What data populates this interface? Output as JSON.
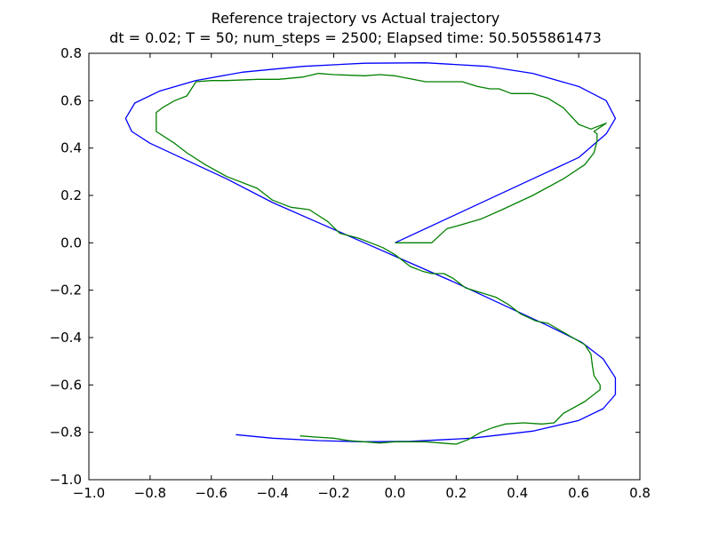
{
  "chart_data": {
    "type": "line",
    "title": "Reference trajectory vs Actual trajectory",
    "subtitle": "dt = 0.02; T = 50; num_steps = 2500; Elapsed time: 50.5055861473",
    "xlabel": "",
    "ylabel": "",
    "xlim": [
      -1.0,
      0.8
    ],
    "ylim": [
      -1.0,
      0.8
    ],
    "x_ticks": [
      -1.0,
      -0.8,
      -0.6,
      -0.4,
      -0.2,
      0.0,
      0.2,
      0.4,
      0.6,
      0.8
    ],
    "x_tick_labels": [
      "−1.0",
      "−0.8",
      "−0.6",
      "−0.4",
      "−0.2",
      "0.0",
      "0.2",
      "0.4",
      "0.6",
      "0.8"
    ],
    "y_ticks": [
      -1.0,
      -0.8,
      -0.6,
      -0.4,
      -0.2,
      0.0,
      0.2,
      0.4,
      0.6,
      0.8
    ],
    "y_tick_labels": [
      "−1.0",
      "−0.8",
      "−0.6",
      "−0.4",
      "−0.2",
      "0.0",
      "0.2",
      "0.4",
      "0.6",
      "0.8"
    ],
    "grid": false,
    "legend": "none",
    "series": [
      {
        "color": "#0000ff",
        "points": [
          [
            0.0,
            0.0
          ],
          [
            0.15,
            0.09
          ],
          [
            0.3,
            0.18
          ],
          [
            0.45,
            0.27
          ],
          [
            0.6,
            0.36
          ],
          [
            0.69,
            0.46
          ],
          [
            0.72,
            0.525
          ],
          [
            0.69,
            0.6
          ],
          [
            0.6,
            0.66
          ],
          [
            0.45,
            0.715
          ],
          [
            0.3,
            0.745
          ],
          [
            0.1,
            0.76
          ],
          [
            -0.1,
            0.758
          ],
          [
            -0.3,
            0.745
          ],
          [
            -0.5,
            0.72
          ],
          [
            -0.65,
            0.685
          ],
          [
            -0.77,
            0.64
          ],
          [
            -0.85,
            0.59
          ],
          [
            -0.88,
            0.525
          ],
          [
            -0.86,
            0.47
          ],
          [
            -0.8,
            0.42
          ],
          [
            -0.7,
            0.36
          ],
          [
            -0.55,
            0.27
          ],
          [
            -0.4,
            0.17
          ],
          [
            -0.25,
            0.085
          ],
          [
            -0.1,
            0.0
          ],
          [
            0.05,
            -0.085
          ],
          [
            0.2,
            -0.17
          ],
          [
            0.35,
            -0.26
          ],
          [
            0.5,
            -0.35
          ],
          [
            0.61,
            -0.42
          ],
          [
            0.68,
            -0.49
          ],
          [
            0.72,
            -0.57
          ],
          [
            0.72,
            -0.64
          ],
          [
            0.68,
            -0.7
          ],
          [
            0.6,
            -0.75
          ],
          [
            0.45,
            -0.795
          ],
          [
            0.25,
            -0.825
          ],
          [
            0.05,
            -0.838
          ],
          [
            -0.1,
            -0.84
          ],
          [
            -0.25,
            -0.835
          ],
          [
            -0.4,
            -0.825
          ],
          [
            -0.52,
            -0.81
          ]
        ]
      },
      {
        "color": "#008000",
        "points": [
          [
            0.0,
            0.0
          ],
          [
            0.06,
            0.0
          ],
          [
            0.12,
            0.0
          ],
          [
            0.17,
            0.06
          ],
          [
            0.2,
            0.07
          ],
          [
            0.28,
            0.1
          ],
          [
            0.35,
            0.14
          ],
          [
            0.45,
            0.2
          ],
          [
            0.55,
            0.27
          ],
          [
            0.62,
            0.33
          ],
          [
            0.65,
            0.38
          ],
          [
            0.66,
            0.43
          ],
          [
            0.66,
            0.46
          ],
          [
            0.65,
            0.47
          ],
          [
            0.69,
            0.505
          ],
          [
            0.64,
            0.48
          ],
          [
            0.6,
            0.5
          ],
          [
            0.55,
            0.57
          ],
          [
            0.5,
            0.61
          ],
          [
            0.45,
            0.63
          ],
          [
            0.38,
            0.63
          ],
          [
            0.34,
            0.65
          ],
          [
            0.31,
            0.65
          ],
          [
            0.27,
            0.66
          ],
          [
            0.22,
            0.68
          ],
          [
            0.1,
            0.68
          ],
          [
            0.06,
            0.69
          ],
          [
            0.0,
            0.705
          ],
          [
            -0.05,
            0.71
          ],
          [
            -0.1,
            0.705
          ],
          [
            -0.2,
            0.71
          ],
          [
            -0.25,
            0.715
          ],
          [
            -0.3,
            0.7
          ],
          [
            -0.38,
            0.69
          ],
          [
            -0.45,
            0.69
          ],
          [
            -0.55,
            0.685
          ],
          [
            -0.6,
            0.685
          ],
          [
            -0.65,
            0.68
          ],
          [
            -0.68,
            0.62
          ],
          [
            -0.72,
            0.6
          ],
          [
            -0.76,
            0.57
          ],
          [
            -0.78,
            0.55
          ],
          [
            -0.78,
            0.51
          ],
          [
            -0.78,
            0.47
          ],
          [
            -0.72,
            0.42
          ],
          [
            -0.68,
            0.38
          ],
          [
            -0.62,
            0.33
          ],
          [
            -0.55,
            0.28
          ],
          [
            -0.45,
            0.23
          ],
          [
            -0.4,
            0.18
          ],
          [
            -0.34,
            0.15
          ],
          [
            -0.28,
            0.14
          ],
          [
            -0.22,
            0.09
          ],
          [
            -0.18,
            0.04
          ],
          [
            -0.12,
            0.02
          ],
          [
            -0.08,
            0.0
          ],
          [
            -0.04,
            -0.02
          ],
          [
            0.0,
            -0.05
          ],
          [
            0.05,
            -0.1
          ],
          [
            0.09,
            -0.12
          ],
          [
            0.12,
            -0.13
          ],
          [
            0.16,
            -0.13
          ],
          [
            0.19,
            -0.15
          ],
          [
            0.23,
            -0.19
          ],
          [
            0.28,
            -0.21
          ],
          [
            0.33,
            -0.23
          ],
          [
            0.37,
            -0.26
          ],
          [
            0.41,
            -0.3
          ],
          [
            0.46,
            -0.33
          ],
          [
            0.5,
            -0.34
          ],
          [
            0.54,
            -0.37
          ],
          [
            0.58,
            -0.4
          ],
          [
            0.62,
            -0.43
          ],
          [
            0.64,
            -0.47
          ],
          [
            0.645,
            -0.52
          ],
          [
            0.65,
            -0.56
          ],
          [
            0.67,
            -0.6
          ],
          [
            0.67,
            -0.62
          ],
          [
            0.65,
            -0.64
          ],
          [
            0.62,
            -0.67
          ],
          [
            0.55,
            -0.72
          ],
          [
            0.52,
            -0.76
          ],
          [
            0.48,
            -0.765
          ],
          [
            0.42,
            -0.76
          ],
          [
            0.36,
            -0.765
          ],
          [
            0.32,
            -0.78
          ],
          [
            0.28,
            -0.8
          ],
          [
            0.24,
            -0.83
          ],
          [
            0.2,
            -0.85
          ],
          [
            0.15,
            -0.845
          ],
          [
            0.1,
            -0.84
          ],
          [
            0.0,
            -0.84
          ],
          [
            -0.05,
            -0.845
          ],
          [
            -0.1,
            -0.84
          ],
          [
            -0.15,
            -0.835
          ],
          [
            -0.2,
            -0.825
          ],
          [
            -0.26,
            -0.82
          ],
          [
            -0.31,
            -0.815
          ]
        ]
      }
    ]
  }
}
